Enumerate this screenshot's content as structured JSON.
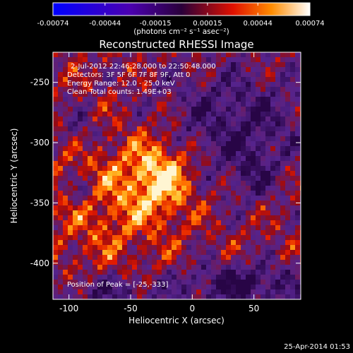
{
  "chart_data": {
    "type": "heatmap",
    "title": "Reconstructed RHESSI Image",
    "xlabel": "Heliocentric X (arcsec)",
    "ylabel": "Heliocentric Y (arcsec)",
    "xlim": [
      -113,
      88
    ],
    "ylim": [
      -430,
      -225
    ],
    "x_ticks": [
      -100,
      -50,
      0,
      50
    ],
    "y_ticks": [
      -250,
      -300,
      -350,
      -400
    ],
    "colorbar": {
      "units": "(photons cm⁻² s⁻¹ asec⁻²)",
      "ticks": [
        "-0.00074",
        "-0.00044",
        "-0.00015",
        "0.00015",
        "0.00044",
        "0.00074"
      ],
      "tick_values": [
        -0.00074,
        -0.00044,
        -0.00015,
        0.00015,
        0.00044,
        0.00074
      ],
      "range": [
        -0.00074,
        0.00074
      ]
    },
    "annotations": [
      "2-Jul-2012 22:46:28.000 to 22:50:48.000",
      "Detectors: 3F 5F 6F 7F 8F 9F, Att 0",
      "Energy Range: 12.0 - 25.0 keV",
      "Clean     Total counts: 1.49E+03"
    ],
    "peak_label": "Position of Peak = [-25,-333]",
    "peak_position": [
      -25,
      -333
    ],
    "timestamp": "25-Apr-2014 01:53",
    "grid": false
  },
  "colors": {
    "background": "#000000",
    "axis": "#ffffff",
    "text": "#ffffff"
  }
}
